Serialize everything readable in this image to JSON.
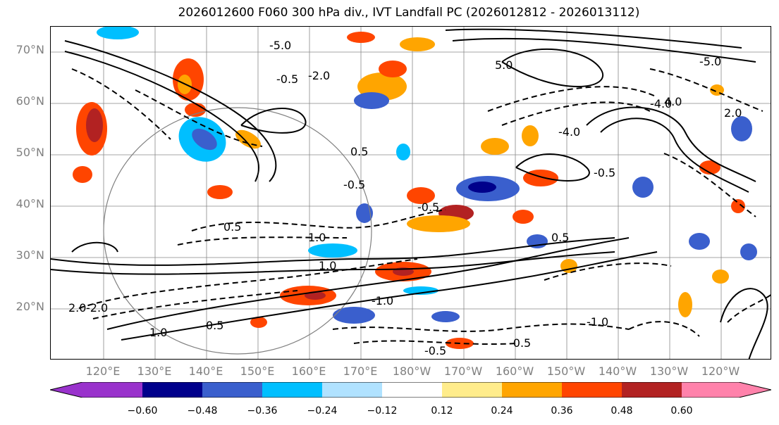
{
  "title": "2026012600 F060 300 hPa div., IVT Landfall PC (2026012812 - 2026013112)",
  "lat_labels": [
    "70°N",
    "60°N",
    "50°N",
    "40°N",
    "30°N",
    "20°N"
  ],
  "lon_labels": [
    "120°E",
    "130°E",
    "140°E",
    "150°E",
    "160°E",
    "170°E",
    "180°W",
    "170°W",
    "160°W",
    "150°W",
    "140°W",
    "130°W",
    "120°W"
  ],
  "contour_labels": [
    "-5.0",
    "-5.0",
    "-4.0",
    "-4.0",
    "-2.0",
    "-2.0",
    "-1.0",
    "-1.0",
    "-0.5",
    "-0.5",
    "-0.5",
    "-0.5",
    "-0.5",
    "-0.5",
    "0.5",
    "0.5",
    "0.5",
    "0.5",
    "1.0",
    "1.0",
    "1.0",
    "2.0",
    "2.0",
    "4.0",
    "5.0"
  ],
  "colorbar": {
    "colors": [
      "#9932cc",
      "#00008b",
      "#3a5fcd",
      "#00bfff",
      "#b0e2ff",
      "#ffffff",
      "#ffec8b",
      "#ffa500",
      "#ff4500",
      "#b22222",
      "#ff82ab"
    ],
    "tick_labels": [
      "−0.60",
      "−0.48",
      "−0.36",
      "−0.24",
      "−0.12",
      "0.12",
      "0.24",
      "0.36",
      "0.48",
      "0.60"
    ]
  }
}
